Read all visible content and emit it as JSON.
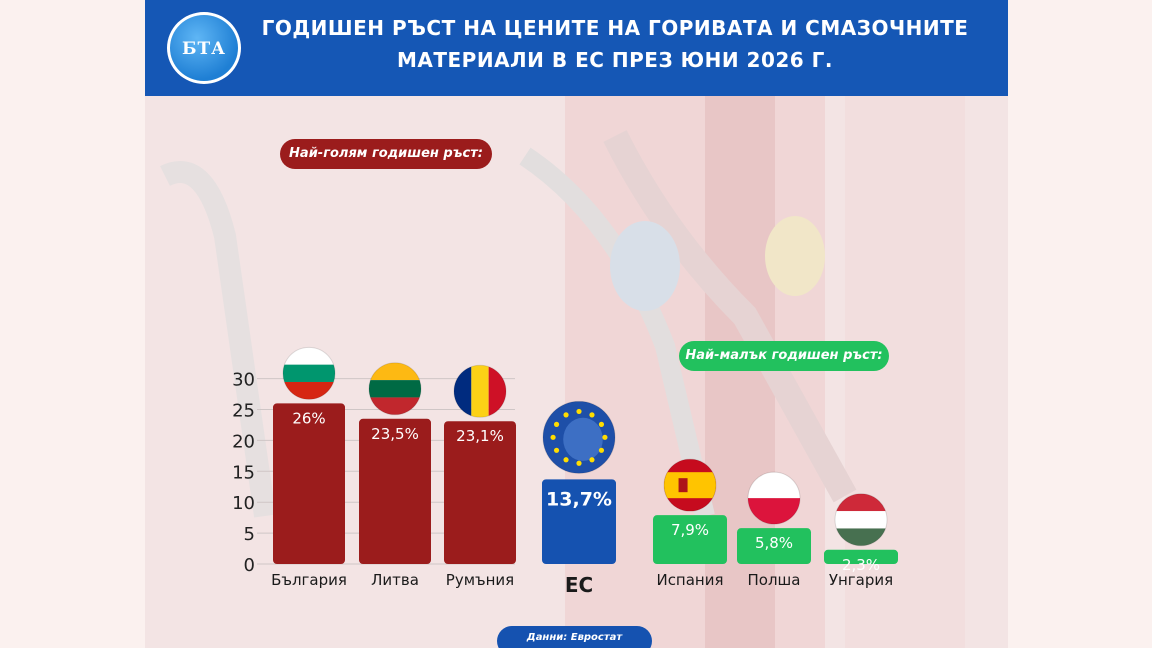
{
  "header": {
    "logo_text": "БТА",
    "title_line1": "ГОДИШЕН РЪСТ НА ЦЕНИТЕ НА ГОРИВАТА И СМАЗОЧНИТЕ",
    "title_line2": "МАТЕРИАЛИ В ЕС ПРЕЗ ЮНИ 2026 Г."
  },
  "callouts": {
    "highest": "Най-голям годишен ръст:",
    "lowest": "Най-малък годишен ръст:"
  },
  "source": "Данни: Евростат",
  "colors": {
    "header": "#1557b5",
    "highest": "#9b1c1c",
    "eu": "#1552b0",
    "lowest": "#22c15e"
  },
  "chart_data": {
    "type": "bar",
    "title": "ГОДИШЕН РЪСТ НА ЦЕНИТЕ НА ГОРИВАТА И СМАЗОЧНИТЕ МАТЕРИАЛИ В ЕС ПРЕЗ ЮНИ 2026 Г.",
    "ylim": [
      0,
      30
    ],
    "yticks": [
      "0",
      "5",
      "10",
      "15",
      "20",
      "25",
      "30"
    ],
    "grid": true,
    "categories": [
      "България",
      "Литва",
      "Румъния",
      "ЕС",
      "Испания",
      "Полша",
      "Унгария"
    ],
    "values": [
      26,
      23.5,
      23.1,
      13.7,
      7.9,
      5.8,
      2.3
    ],
    "labels": [
      "26%",
      "23,5%",
      "23,1%",
      "13,7%",
      "7,9%",
      "5,8%",
      "2,3%"
    ],
    "groups": [
      "highest",
      "highest",
      "highest",
      "eu",
      "lowest",
      "lowest",
      "lowest"
    ],
    "flags": [
      "bulgaria-flag",
      "lithuania-flag",
      "romania-flag",
      "eu-flag",
      "spain-flag",
      "poland-flag",
      "hungary-flag"
    ]
  }
}
